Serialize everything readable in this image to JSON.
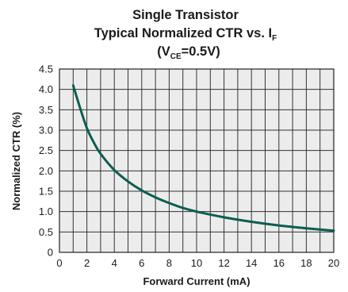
{
  "chart_data": {
    "type": "line",
    "title_lines": [
      "Single Transistor",
      "Typical Normalized CTR vs. I",
      "(V"
    ],
    "title_subscripts": {
      "line2_sub": "F",
      "line3_sub": "CE",
      "line3_tail": "=0.5V)"
    },
    "xlabel": "Forward Current (mA)",
    "ylabel": "Normalized CTR (%)",
    "xlim": [
      0,
      20
    ],
    "ylim": [
      0,
      4.5
    ],
    "x_ticks": [
      "0",
      "2",
      "4",
      "6",
      "8",
      "10",
      "12",
      "14",
      "16",
      "18",
      "20"
    ],
    "y_ticks": [
      "0",
      "0.5",
      "1.0",
      "1.5",
      "2.0",
      "2.5",
      "3.0",
      "3.5",
      "4.0",
      "4.5"
    ],
    "x_tick_values": [
      0,
      2,
      4,
      6,
      8,
      10,
      12,
      14,
      16,
      18,
      20
    ],
    "y_tick_values": [
      0,
      0.5,
      1.0,
      1.5,
      2.0,
      2.5,
      3.0,
      3.5,
      4.0,
      4.5
    ],
    "x_minor_grid": [
      1,
      3,
      5,
      7,
      9,
      11,
      13,
      15,
      17,
      19
    ],
    "grid": true,
    "plot_background": "#ececec",
    "line_color": "#0b5e50",
    "series": [
      {
        "x": [
          1,
          1.5,
          2,
          2.5,
          3,
          4,
          5,
          6,
          7,
          8,
          9,
          10,
          12,
          14,
          16,
          18,
          20
        ],
        "values": [
          4.1,
          3.55,
          3.05,
          2.7,
          2.42,
          2.02,
          1.74,
          1.52,
          1.35,
          1.21,
          1.09,
          1.0,
          0.86,
          0.75,
          0.66,
          0.59,
          0.53
        ]
      }
    ]
  }
}
